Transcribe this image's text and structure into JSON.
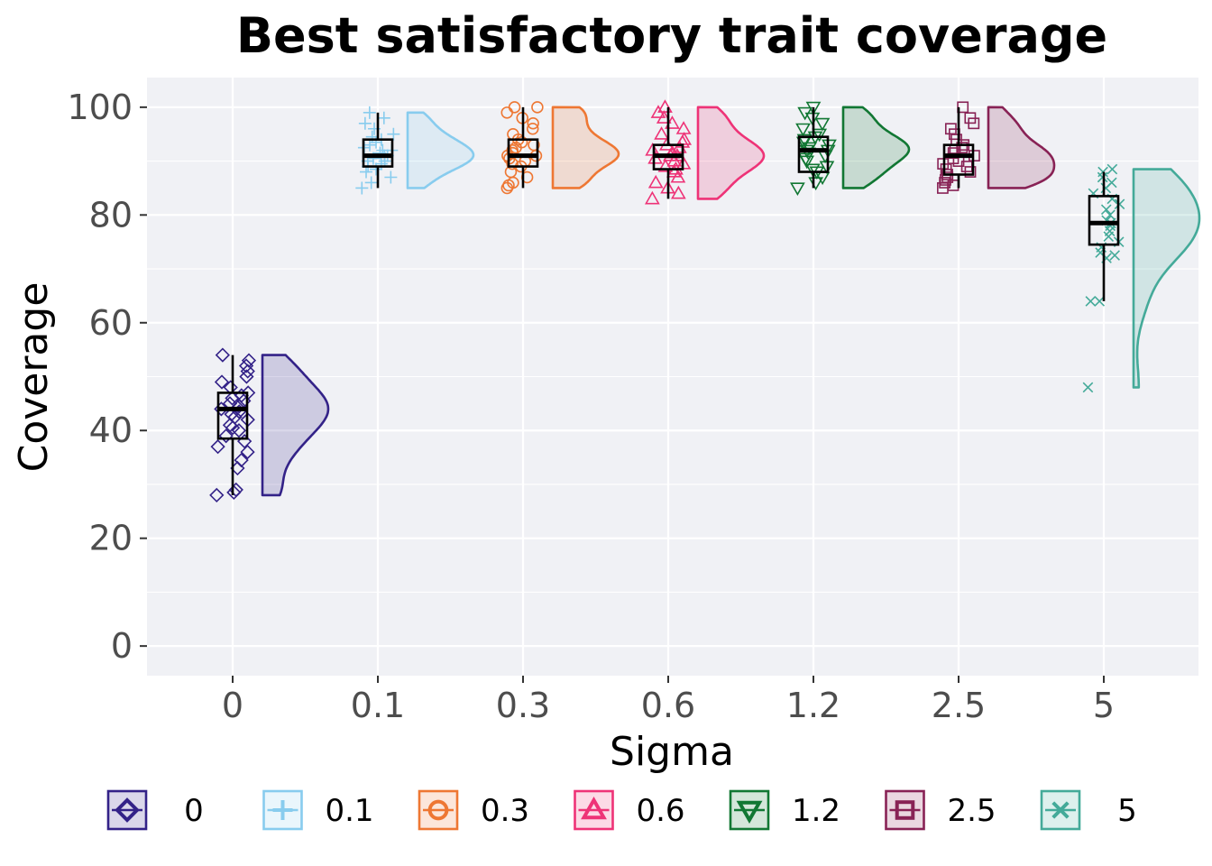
{
  "chart_data": {
    "type": "raincloud",
    "title": "Best satisfactory trait coverage",
    "xlabel": "Sigma",
    "ylabel": "Coverage",
    "ylim": [
      -5.5,
      105.5
    ],
    "yticks": [
      0,
      20,
      40,
      60,
      80,
      100
    ],
    "categories": [
      "0",
      "0.1",
      "0.3",
      "0.6",
      "1.2",
      "2.5",
      "5"
    ],
    "legend_position": "bottom",
    "grid": true,
    "background": "#f0f1f5",
    "series": [
      {
        "name": "0",
        "color": "#332288",
        "marker": "diamond",
        "box": {
          "min": 28,
          "q1": 38.5,
          "median": 44,
          "q3": 47,
          "max": 54
        },
        "points": [
          28,
          28.5,
          29,
          33,
          34.5,
          36,
          37,
          38,
          39,
          40,
          40.5,
          41,
          42,
          42.5,
          43,
          43.5,
          44,
          44.5,
          45,
          45.5,
          46,
          46.5,
          47,
          48,
          49,
          50,
          51,
          52,
          53,
          54
        ]
      },
      {
        "name": "0.1",
        "color": "#88ccee",
        "marker": "plus",
        "box": {
          "min": 85,
          "q1": 89,
          "median": 91,
          "q3": 94,
          "max": 99
        },
        "points": [
          85,
          86,
          87,
          88,
          88.5,
          89,
          89.5,
          90,
          90,
          90.5,
          91,
          91,
          91.5,
          92,
          92,
          92.5,
          93,
          93.5,
          94,
          94.5,
          95,
          96,
          97,
          98,
          99
        ]
      },
      {
        "name": "0.3",
        "color": "#ee7733",
        "marker": "circle",
        "box": {
          "min": 85,
          "q1": 89,
          "median": 91,
          "q3": 94,
          "max": 100
        },
        "points": [
          85,
          85.5,
          86,
          87,
          88,
          89,
          89.5,
          90,
          90.5,
          91,
          91,
          91.5,
          92,
          92.5,
          93,
          93.5,
          94,
          95,
          96,
          97,
          98,
          99,
          100,
          100
        ]
      },
      {
        "name": "0.6",
        "color": "#ee3377",
        "marker": "triangle",
        "box": {
          "min": 83,
          "q1": 88.5,
          "median": 91,
          "q3": 93,
          "max": 100
        },
        "points": [
          83,
          84,
          85,
          86,
          87,
          88,
          88.5,
          89,
          89.5,
          90,
          90.5,
          91,
          91,
          91.5,
          92,
          92.5,
          93,
          93.5,
          94,
          95,
          96,
          97,
          98,
          99,
          100
        ]
      },
      {
        "name": "1.2",
        "color": "#117733",
        "marker": "triangle-down",
        "box": {
          "min": 85,
          "q1": 88,
          "median": 92,
          "q3": 94.5,
          "max": 100
        },
        "points": [
          85,
          86,
          87,
          88,
          88.5,
          89,
          90,
          90.5,
          91,
          91.5,
          92,
          92,
          92.5,
          93,
          93.5,
          94,
          94.5,
          95,
          96,
          97,
          98,
          99,
          100
        ]
      },
      {
        "name": "2.5",
        "color": "#882255",
        "marker": "square",
        "box": {
          "min": 85,
          "q1": 87.5,
          "median": 91,
          "q3": 93,
          "max": 100
        },
        "points": [
          85,
          85.5,
          86,
          86.5,
          87,
          87.5,
          88,
          88.5,
          89,
          89.5,
          90,
          90.5,
          91,
          91.5,
          92,
          92.5,
          93,
          94,
          95,
          96,
          97,
          98,
          100
        ]
      },
      {
        "name": "5",
        "color": "#44aa99",
        "marker": "x",
        "box": {
          "min": 64,
          "q1": 74.5,
          "median": 78.5,
          "q3": 83.5,
          "max": 88
        },
        "points": [
          48,
          64,
          64,
          72,
          72.5,
          73,
          74,
          75,
          76,
          77,
          78,
          78.5,
          79,
          80,
          81,
          82,
          83,
          84,
          85,
          86,
          87,
          88,
          88.5
        ]
      }
    ]
  },
  "colors": {
    "panel": "#f0f1f5",
    "grid": "#ffffff",
    "tick": "#4d4d4d"
  }
}
